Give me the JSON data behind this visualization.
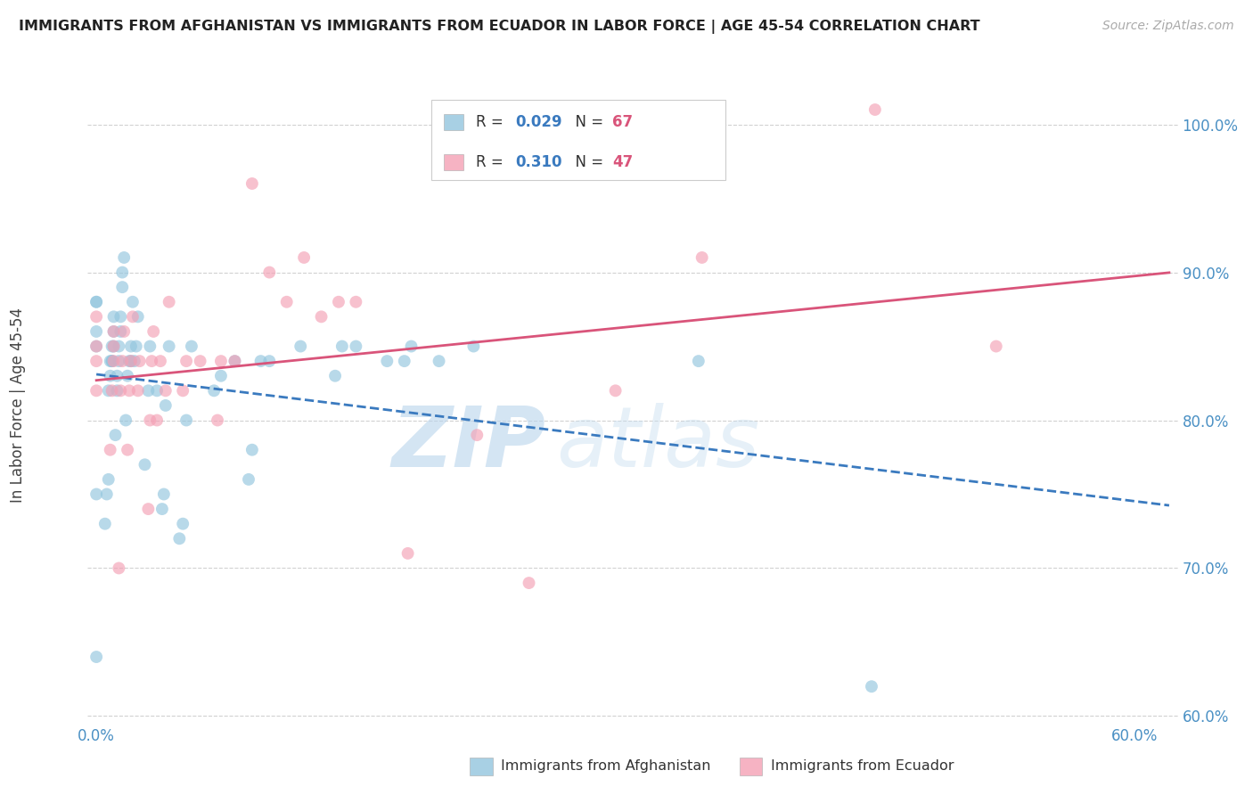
{
  "title": "IMMIGRANTS FROM AFGHANISTAN VS IMMIGRANTS FROM ECUADOR IN LABOR FORCE | AGE 45-54 CORRELATION CHART",
  "source": "Source: ZipAtlas.com",
  "ylabel": "In Labor Force | Age 45-54",
  "xlim": [
    -0.005,
    0.625
  ],
  "ylim": [
    0.595,
    1.025
  ],
  "xticks": [
    0.0,
    0.1,
    0.2,
    0.3,
    0.4,
    0.5,
    0.6
  ],
  "xtick_labels": [
    "0.0%",
    "",
    "",
    "",
    "",
    "",
    "60.0%"
  ],
  "ytick_positions": [
    0.6,
    0.7,
    0.8,
    0.9,
    1.0
  ],
  "ytick_labels": [
    "60.0%",
    "70.0%",
    "80.0%",
    "90.0%",
    "100.0%"
  ],
  "afghanistan_color": "#92c5de",
  "ecuador_color": "#f4a0b5",
  "afghanistan_line_color": "#3a7abf",
  "ecuador_line_color": "#d9547a",
  "r_value_color": "#3a7abf",
  "n_value_color": "#d9547a",
  "legend_r_afg": "0.029",
  "legend_n_afg": "67",
  "legend_r_ecu": "0.310",
  "legend_n_ecu": "47",
  "legend_label_afg": "Immigrants from Afghanistan",
  "legend_label_ecu": "Immigrants from Ecuador",
  "watermark_zip": "ZIP",
  "watermark_atlas": "atlas",
  "afghanistan_x": [
    0.0,
    0.0,
    0.0,
    0.0,
    0.0,
    0.0,
    0.005,
    0.006,
    0.007,
    0.007,
    0.008,
    0.008,
    0.009,
    0.009,
    0.009,
    0.01,
    0.01,
    0.01,
    0.011,
    0.012,
    0.012,
    0.013,
    0.013,
    0.014,
    0.014,
    0.015,
    0.015,
    0.016,
    0.017,
    0.018,
    0.019,
    0.02,
    0.02,
    0.021,
    0.022,
    0.023,
    0.024,
    0.028,
    0.03,
    0.031,
    0.035,
    0.038,
    0.039,
    0.04,
    0.042,
    0.048,
    0.05,
    0.052,
    0.055,
    0.068,
    0.072,
    0.08,
    0.088,
    0.09,
    0.095,
    0.1,
    0.118,
    0.138,
    0.142,
    0.15,
    0.168,
    0.178,
    0.182,
    0.198,
    0.218,
    0.348,
    0.448
  ],
  "afghanistan_y": [
    0.64,
    0.75,
    0.85,
    0.86,
    0.88,
    0.88,
    0.73,
    0.75,
    0.76,
    0.82,
    0.83,
    0.84,
    0.84,
    0.84,
    0.85,
    0.85,
    0.86,
    0.87,
    0.79,
    0.82,
    0.83,
    0.84,
    0.85,
    0.86,
    0.87,
    0.89,
    0.9,
    0.91,
    0.8,
    0.83,
    0.84,
    0.84,
    0.85,
    0.88,
    0.84,
    0.85,
    0.87,
    0.77,
    0.82,
    0.85,
    0.82,
    0.74,
    0.75,
    0.81,
    0.85,
    0.72,
    0.73,
    0.8,
    0.85,
    0.82,
    0.83,
    0.84,
    0.76,
    0.78,
    0.84,
    0.84,
    0.85,
    0.83,
    0.85,
    0.85,
    0.84,
    0.84,
    0.85,
    0.84,
    0.85,
    0.84,
    0.62
  ],
  "ecuador_x": [
    0.0,
    0.0,
    0.0,
    0.0,
    0.008,
    0.009,
    0.01,
    0.01,
    0.01,
    0.013,
    0.014,
    0.015,
    0.016,
    0.018,
    0.019,
    0.02,
    0.021,
    0.024,
    0.025,
    0.03,
    0.031,
    0.032,
    0.033,
    0.035,
    0.037,
    0.04,
    0.042,
    0.05,
    0.052,
    0.06,
    0.07,
    0.072,
    0.08,
    0.09,
    0.1,
    0.11,
    0.12,
    0.13,
    0.14,
    0.15,
    0.18,
    0.22,
    0.25,
    0.3,
    0.35,
    0.45,
    0.52
  ],
  "ecuador_y": [
    0.82,
    0.84,
    0.85,
    0.87,
    0.78,
    0.82,
    0.84,
    0.85,
    0.86,
    0.7,
    0.82,
    0.84,
    0.86,
    0.78,
    0.82,
    0.84,
    0.87,
    0.82,
    0.84,
    0.74,
    0.8,
    0.84,
    0.86,
    0.8,
    0.84,
    0.82,
    0.88,
    0.82,
    0.84,
    0.84,
    0.8,
    0.84,
    0.84,
    0.96,
    0.9,
    0.88,
    0.91,
    0.87,
    0.88,
    0.88,
    0.71,
    0.79,
    0.69,
    0.82,
    0.91,
    1.01,
    0.85
  ]
}
